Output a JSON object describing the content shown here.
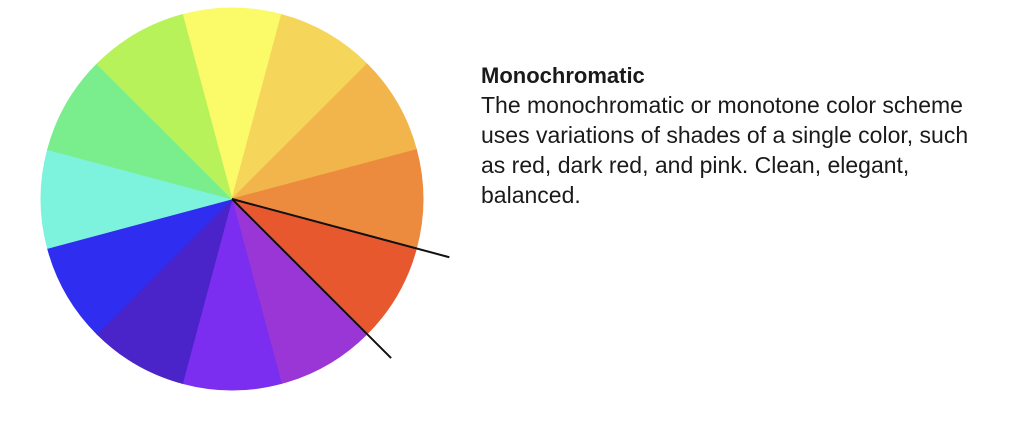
{
  "scheme": {
    "title": "Monochromatic",
    "description": "The monochromatic or monotone color scheme uses variations of shades of a single color, such as red, dark red, and pink. Clean, elegant, balanced."
  },
  "wheel": {
    "segments": [
      {
        "name": "yellow",
        "color": "#fbfb6a"
      },
      {
        "name": "yellow-orange",
        "color": "#f5d55a"
      },
      {
        "name": "orange-yellow",
        "color": "#f2b54c"
      },
      {
        "name": "orange",
        "color": "#ec8a3e"
      },
      {
        "name": "red-orange",
        "color": "#e8582f"
      },
      {
        "name": "magenta-purple",
        "color": "#9b36d6"
      },
      {
        "name": "violet",
        "color": "#7b2ef0"
      },
      {
        "name": "indigo",
        "color": "#4a24c8"
      },
      {
        "name": "blue",
        "color": "#2f2df0"
      },
      {
        "name": "aqua",
        "color": "#7df2dc"
      },
      {
        "name": "green",
        "color": "#7aee8c"
      },
      {
        "name": "yellow-green",
        "color": "#b8f25a"
      }
    ],
    "selected_segment": "red-orange",
    "pointer_color": "#111111"
  }
}
